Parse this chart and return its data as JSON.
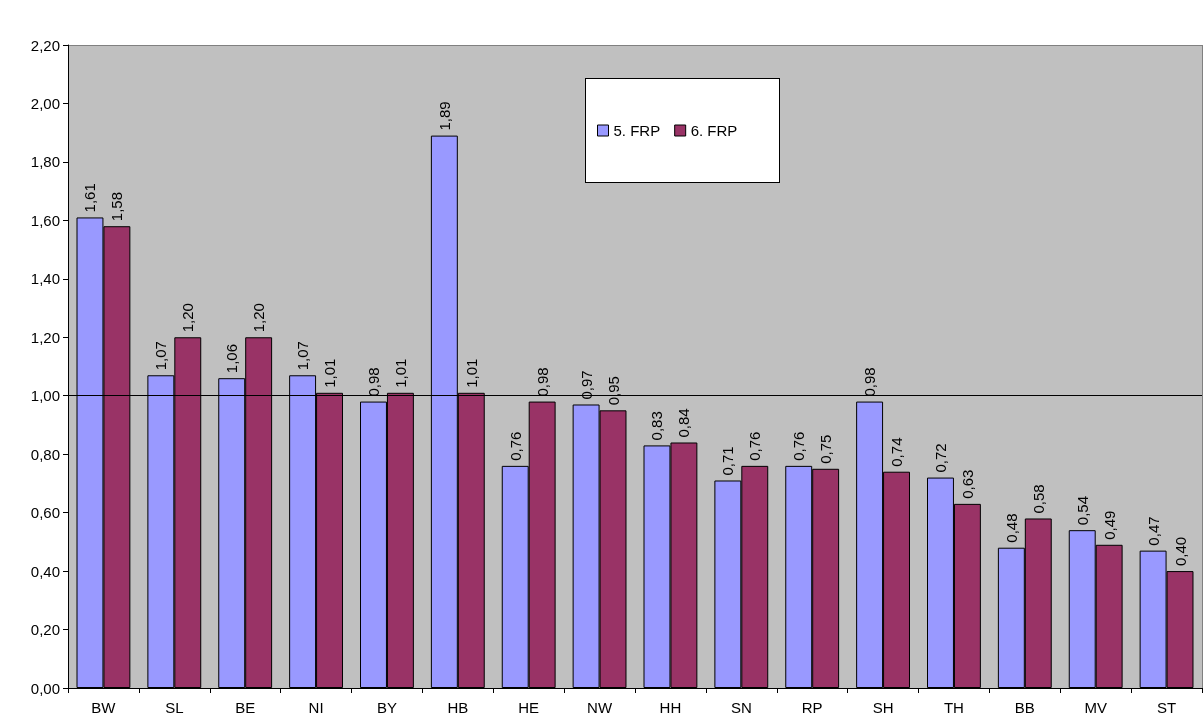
{
  "chart_data": {
    "type": "bar",
    "categories": [
      "BW",
      "SL",
      "BE",
      "NI",
      "BY",
      "HB",
      "HE",
      "NW",
      "HH",
      "SN",
      "RP",
      "SH",
      "TH",
      "BB",
      "MV",
      "ST"
    ],
    "series": [
      {
        "name": "5. FRP",
        "color": "#9999ff",
        "values": [
          1.61,
          1.07,
          1.06,
          1.07,
          0.98,
          1.89,
          0.76,
          0.97,
          0.83,
          0.71,
          0.76,
          0.98,
          0.72,
          0.48,
          0.54,
          0.47
        ],
        "value_labels": [
          "1,61",
          "1,07",
          "1,06",
          "1,07",
          "0,98",
          "1,89",
          "0,76",
          "0,97",
          "0,83",
          "0,71",
          "0,76",
          "0,98",
          "0,72",
          "0,48",
          "0,54",
          "0,47"
        ]
      },
      {
        "name": "6. FRP",
        "color": "#993366",
        "values": [
          1.58,
          1.2,
          1.2,
          1.01,
          1.01,
          1.01,
          0.98,
          0.95,
          0.84,
          0.76,
          0.75,
          0.74,
          0.63,
          0.58,
          0.49,
          0.4
        ],
        "value_labels": [
          "1,58",
          "1,20",
          "1,20",
          "1,01",
          "1,01",
          "1,01",
          "0,98",
          "0,95",
          "0,84",
          "0,76",
          "0,75",
          "0,74",
          "0,63",
          "0,58",
          "0,49",
          "0,40"
        ]
      }
    ],
    "ylim": [
      0,
      2.2
    ],
    "yticks": [
      {
        "value": 0,
        "label": "0,00"
      },
      {
        "value": 0.2,
        "label": "0,20"
      },
      {
        "value": 0.4,
        "label": "0,40"
      },
      {
        "value": 0.6,
        "label": "0,60"
      },
      {
        "value": 0.8,
        "label": "0,80"
      },
      {
        "value": 1.0,
        "label": "1,00"
      },
      {
        "value": 1.2,
        "label": "1,20"
      },
      {
        "value": 1.4,
        "label": "1,40"
      },
      {
        "value": 1.6,
        "label": "1,60"
      },
      {
        "value": 1.8,
        "label": "1,80"
      },
      {
        "value": 2.0,
        "label": "2,00"
      },
      {
        "value": 2.2,
        "label": "2,20"
      }
    ],
    "ref_lines": [
      {
        "axis": "y",
        "value": 1.0,
        "label": null,
        "color": "#000000"
      }
    ],
    "grid": false,
    "legend": "top"
  }
}
